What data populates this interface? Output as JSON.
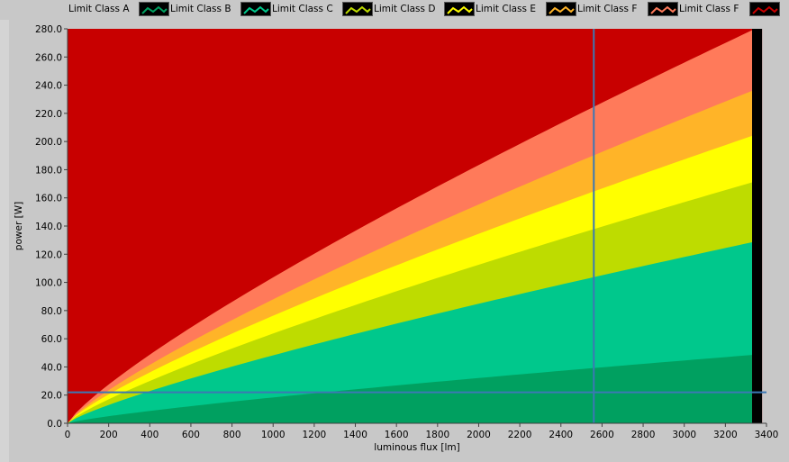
{
  "legend": [
    {
      "label": "Limit Class A",
      "color": "#00a060",
      "icon": "line-wave-icon"
    },
    {
      "label": "Limit Class B",
      "color": "#00c88c",
      "icon": "line-wave-icon"
    },
    {
      "label": "Limit Class C",
      "color": "#bedc00",
      "icon": "line-wave-icon"
    },
    {
      "label": "Limit Class D",
      "color": "#ffff00",
      "icon": "line-wave-icon"
    },
    {
      "label": "Limit Class E",
      "color": "#ffb428",
      "icon": "line-wave-icon"
    },
    {
      "label": "Limit Class F",
      "color": "#ff7a5a",
      "icon": "line-wave-icon"
    },
    {
      "label": "Limit Class F",
      "color": "#c80000",
      "icon": "line-wave-icon"
    }
  ],
  "chart_data": {
    "type": "area",
    "xlabel": "luminous flux [lm]",
    "ylabel": "power [W]",
    "xlim": [
      0,
      3400
    ],
    "ylim": [
      0,
      280
    ],
    "x_ticks": [
      "0",
      "200",
      "400",
      "600",
      "800",
      "1000",
      "1200",
      "1400",
      "1600",
      "1800",
      "2000",
      "2200",
      "2400",
      "2600",
      "2800",
      "3000",
      "3200",
      "3400"
    ],
    "y_ticks": [
      "0.0",
      "20.0",
      "40.0",
      "60.0",
      "80.0",
      "100.0",
      "120.0",
      "140.0",
      "160.0",
      "180.0",
      "200.0",
      "220.0",
      "240.0",
      "260.0",
      "280.0"
    ],
    "x_end": 3330,
    "grid": false,
    "background_color": "#c80000",
    "band_colors": [
      "#00a060",
      "#00c88c",
      "#bedc00",
      "#ffff00",
      "#ffb428",
      "#ff7a5a"
    ],
    "band_upper_values_at_x_end": [
      48.5,
      128.5,
      171,
      204,
      236,
      279
    ],
    "band_values_at_x_200": [
      5,
      13,
      17,
      20.5,
      23.5,
      27.5
    ],
    "cursor": {
      "x": 2560,
      "y": 22
    },
    "cursor_color": "#3c78b4",
    "end_strip_color": "#000000"
  }
}
